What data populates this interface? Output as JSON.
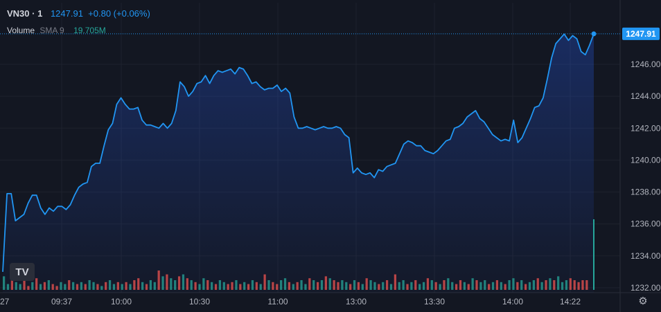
{
  "header": {
    "symbol": "VN30 · 1",
    "last": "1247.91",
    "change": "+0.80 (+0.06%)",
    "volume_label": "Volume",
    "sma_label": "SMA 9",
    "volume_value": "19.705M"
  },
  "last_price_tag": "1247.91",
  "logo_text": "TV",
  "colors": {
    "background": "#131722",
    "line": "#2196f3",
    "up_volume": "#26a69a",
    "down_volume": "#ef5350",
    "grid": "#1e222d",
    "text": "#d1d4dc"
  },
  "icons": {
    "settings": "gear-icon",
    "brand": "tradingview-logo"
  },
  "chart_data": {
    "type": "area",
    "x_tick_labels": [
      "27",
      "09:37",
      "10:00",
      "10:30",
      "11:00",
      "13:00",
      "13:30",
      "14:00",
      "14:22"
    ],
    "y_tick_labels": [
      "1232.00",
      "1234.00",
      "1236.00",
      "1238.00",
      "1240.00",
      "1242.00",
      "1244.00",
      "1246.00"
    ],
    "ylim": [
      1231.6,
      1248.8
    ],
    "grid": true,
    "series": [
      {
        "values": [
          1233.0,
          1237.9,
          1237.9,
          1236.2,
          1236.4,
          1236.6,
          1237.3,
          1237.8,
          1237.8,
          1237.0,
          1236.6,
          1237.0,
          1236.8,
          1237.1,
          1237.1,
          1236.9,
          1237.2,
          1237.8,
          1238.3,
          1238.5,
          1238.6,
          1239.6,
          1239.8,
          1239.8,
          1240.9,
          1241.9,
          1242.3,
          1243.5,
          1243.9,
          1243.5,
          1243.2,
          1243.2,
          1243.3,
          1242.5,
          1242.2,
          1242.2,
          1242.1,
          1242.0,
          1242.3,
          1242.0,
          1242.3,
          1243.1,
          1244.9,
          1244.6,
          1244.0,
          1244.3,
          1244.8,
          1244.9,
          1245.3,
          1244.8,
          1245.3,
          1245.6,
          1245.5,
          1245.6,
          1245.7,
          1245.4,
          1245.8,
          1245.7,
          1245.3,
          1244.8,
          1244.9,
          1244.6,
          1244.4,
          1244.5,
          1244.5,
          1244.7,
          1244.3,
          1244.5,
          1244.2,
          1242.7,
          1242.0,
          1242.0,
          1242.1,
          1242.0,
          1241.9,
          1242.0,
          1242.1,
          1242.0,
          1242.0,
          1242.1,
          1242.0,
          1241.6,
          1241.4,
          1239.2,
          1239.5,
          1239.2,
          1239.1,
          1239.2,
          1238.9,
          1239.4,
          1239.3,
          1239.6,
          1239.7,
          1239.8,
          1240.4,
          1241.0,
          1241.2,
          1241.1,
          1240.9,
          1240.9,
          1240.6,
          1240.5,
          1240.4,
          1240.6,
          1240.9,
          1241.2,
          1241.3,
          1242.0,
          1242.1,
          1242.3,
          1242.7,
          1242.9,
          1243.1,
          1242.6,
          1242.4,
          1242.0,
          1241.6,
          1241.4,
          1241.2,
          1241.3,
          1241.2,
          1242.5,
          1241.1,
          1241.4,
          1242.0,
          1242.6,
          1243.3,
          1243.4,
          1243.9,
          1245.1,
          1246.4,
          1247.3,
          1247.6,
          1247.9,
          1247.5,
          1247.8,
          1247.6,
          1246.8,
          1246.6,
          1247.2,
          1247.91
        ],
        "color": "#2196f3"
      }
    ],
    "volume": {
      "up": [
        1,
        1,
        0,
        1,
        1,
        0,
        0,
        1,
        0,
        1,
        0,
        1,
        0,
        0,
        1,
        1,
        0,
        1,
        0,
        1,
        0,
        1,
        1,
        0,
        1,
        0,
        1,
        1,
        0,
        1,
        0,
        1,
        0,
        0,
        1,
        0,
        1,
        1,
        0,
        1,
        0,
        1,
        1,
        0,
        1,
        0,
        1,
        0,
        1,
        1,
        0,
        1,
        0,
        1,
        1,
        0,
        0,
        1,
        0,
        1,
        0,
        1,
        0,
        1,
        0,
        1,
        0,
        0,
        1,
        1,
        0,
        1,
        0,
        1,
        1,
        0,
        1,
        0,
        1,
        0,
        1,
        0,
        0,
        1,
        1,
        0,
        1,
        0,
        1,
        0,
        1,
        1,
        0,
        1,
        0,
        1,
        0,
        1,
        1,
        0,
        1,
        0,
        1,
        1,
        0,
        1,
        0,
        1,
        0,
        1,
        1,
        0,
        0,
        1,
        0,
        1,
        0,
        1,
        1,
        0,
        1,
        0,
        1,
        0,
        1,
        1,
        0,
        1,
        0,
        1,
        1,
        0,
        1,
        0,
        1,
        0,
        1,
        1,
        1
      ],
      "relative_heights": [
        0.7,
        0.3,
        0.5,
        0.4,
        0.3,
        0.5,
        0.2,
        0.4,
        0.6,
        0.3,
        0.4,
        0.5,
        0.3,
        0.2,
        0.4,
        0.3,
        0.5,
        0.4,
        0.3,
        0.4,
        0.3,
        0.5,
        0.4,
        0.3,
        0.2,
        0.4,
        0.5,
        0.3,
        0.4,
        0.3,
        0.4,
        0.3,
        0.5,
        0.6,
        0.4,
        0.3,
        0.5,
        0.4,
        1.0,
        0.7,
        0.8,
        0.6,
        0.5,
        0.7,
        0.8,
        0.6,
        0.5,
        0.4,
        0.3,
        0.6,
        0.5,
        0.4,
        0.3,
        0.5,
        0.4,
        0.3,
        0.4,
        0.5,
        0.3,
        0.4,
        0.3,
        0.5,
        0.4,
        0.3,
        0.8,
        0.5,
        0.4,
        0.3,
        0.5,
        0.6,
        0.4,
        0.3,
        0.4,
        0.5,
        0.3,
        0.6,
        0.5,
        0.4,
        0.5,
        0.7,
        0.6,
        0.5,
        0.4,
        0.5,
        0.4,
        0.3,
        0.5,
        0.4,
        0.3,
        0.6,
        0.5,
        0.4,
        0.3,
        0.4,
        0.5,
        0.3,
        0.8,
        0.4,
        0.5,
        0.3,
        0.4,
        0.5,
        0.3,
        0.4,
        0.6,
        0.5,
        0.4,
        0.3,
        0.5,
        0.6,
        0.4,
        0.3,
        0.5,
        0.4,
        0.3,
        0.6,
        0.5,
        0.4,
        0.5,
        0.3,
        0.4,
        0.5,
        0.4,
        0.3,
        0.5,
        0.6,
        0.4,
        0.5,
        0.3,
        0.4,
        0.5,
        0.6,
        0.4,
        0.5,
        0.6,
        0.5,
        0.7,
        0.4,
        0.5,
        0.6,
        0.5,
        0.4,
        0.5,
        0.5
      ],
      "last_bar_relative": 1.0
    }
  }
}
